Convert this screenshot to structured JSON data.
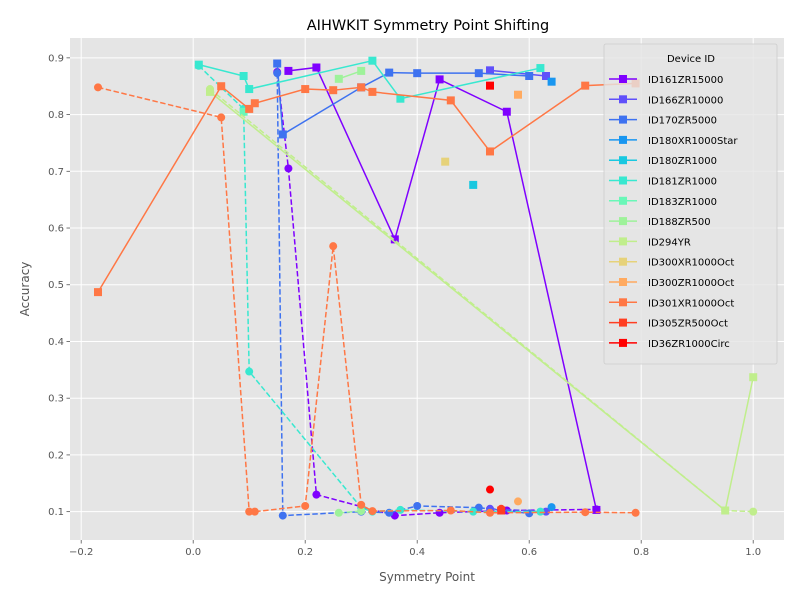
{
  "chart_data": {
    "type": "line",
    "title": "AIHWKIT Symmetry Point Shifting",
    "xlabel": "Symmetry Point",
    "ylabel": "Accuracy",
    "xlim": [
      -0.22,
      1.055
    ],
    "ylim": [
      0.05,
      0.935
    ],
    "xticks": [
      -0.2,
      0.0,
      0.2,
      0.4,
      0.6,
      0.8,
      1.0
    ],
    "xtick_labels": [
      "−0.2",
      "0.0",
      "0.2",
      "0.4",
      "0.6",
      "0.8",
      "1.0"
    ],
    "yticks": [
      0.1,
      0.2,
      0.3,
      0.4,
      0.5,
      0.6,
      0.7,
      0.8,
      0.9
    ],
    "ytick_labels": [
      "0.1",
      "0.2",
      "0.3",
      "0.4",
      "0.5",
      "0.6",
      "0.7",
      "0.8",
      "0.9"
    ],
    "grid": true,
    "legend": {
      "title": "Device ID",
      "placement": "top-right"
    },
    "series": [
      {
        "name": "ID161ZR15000",
        "color": "#7f00ff",
        "square": [
          [
            0.17,
            0.877
          ],
          [
            0.22,
            0.883
          ],
          [
            0.36,
            0.58
          ],
          [
            0.44,
            0.862
          ],
          [
            0.56,
            0.805
          ],
          [
            0.72,
            0.103
          ]
        ],
        "circle": [
          [
            0.15,
            0.875
          ],
          [
            0.17,
            0.705
          ],
          [
            0.22,
            0.13
          ],
          [
            0.36,
            0.093
          ],
          [
            0.44,
            0.098
          ],
          [
            0.56,
            0.102
          ],
          [
            0.72,
            0.104
          ]
        ]
      },
      {
        "name": "ID166ZR10000",
        "color": "#6050fa",
        "square": [
          [
            0.53,
            0.878
          ],
          [
            0.63,
            0.868
          ]
        ],
        "circle": [
          [
            0.53,
            0.105
          ],
          [
            0.63,
            0.1
          ]
        ]
      },
      {
        "name": "ID170ZR5000",
        "color": "#3e72f0",
        "square": [
          [
            0.15,
            0.89
          ],
          [
            0.16,
            0.765
          ],
          [
            0.3,
            0.848
          ],
          [
            0.35,
            0.874
          ],
          [
            0.4,
            0.873
          ],
          [
            0.51,
            0.873
          ],
          [
            0.6,
            0.868
          ]
        ],
        "circle": [
          [
            0.15,
            0.873
          ],
          [
            0.16,
            0.093
          ],
          [
            0.3,
            0.1
          ],
          [
            0.35,
            0.098
          ],
          [
            0.4,
            0.11
          ],
          [
            0.51,
            0.107
          ],
          [
            0.6,
            0.097
          ]
        ]
      },
      {
        "name": "ID180XR1000Star",
        "color": "#1996f0",
        "square": [
          [
            0.64,
            0.858
          ]
        ],
        "circle": [
          [
            0.64,
            0.108
          ]
        ]
      },
      {
        "name": "ID180ZR1000",
        "color": "#19c8e0",
        "square": [
          [
            0.5,
            0.676
          ]
        ],
        "circle": []
      },
      {
        "name": "ID181ZR1000",
        "color": "#38e8d0",
        "square": [
          [
            0.01,
            0.888
          ],
          [
            0.09,
            0.868
          ],
          [
            0.1,
            0.845
          ],
          [
            0.32,
            0.895
          ],
          [
            0.37,
            0.828
          ],
          [
            0.62,
            0.882
          ]
        ],
        "circle": [
          [
            0.01,
            0.886
          ],
          [
            0.09,
            0.81
          ],
          [
            0.1,
            0.347
          ],
          [
            0.3,
            0.107
          ],
          [
            0.32,
            0.1
          ],
          [
            0.37,
            0.103
          ],
          [
            0.5,
            0.1
          ],
          [
            0.62,
            0.1
          ]
        ]
      },
      {
        "name": "ID183ZR1000",
        "color": "#6af7b8",
        "square": [
          [
            0.09,
            0.805
          ]
        ],
        "circle": []
      },
      {
        "name": "ID188ZR500",
        "color": "#9ef29a",
        "square": [
          [
            0.26,
            0.863
          ],
          [
            0.3,
            0.877
          ]
        ],
        "circle": [
          [
            0.26,
            0.098
          ],
          [
            0.3,
            0.101
          ]
        ]
      },
      {
        "name": "ID294YR",
        "color": "#c0ee8c",
        "square": [
          [
            0.03,
            0.84
          ],
          [
            0.95,
            0.102
          ],
          [
            1.0,
            0.337
          ]
        ],
        "circle": [
          [
            0.03,
            0.845
          ],
          [
            0.95,
            0.102
          ],
          [
            1.0,
            0.1
          ]
        ]
      },
      {
        "name": "ID300XR1000Oct",
        "color": "#e6d27a",
        "square": [
          [
            0.45,
            0.717
          ]
        ],
        "circle": []
      },
      {
        "name": "ID300ZR1000Oct",
        "color": "#ffaa60",
        "square": [
          [
            0.58,
            0.835
          ]
        ],
        "circle": [
          [
            0.58,
            0.118
          ]
        ]
      },
      {
        "name": "ID301XR1000Oct",
        "color": "#ff7745",
        "square": [
          [
            -0.17,
            0.487
          ],
          [
            0.05,
            0.85
          ],
          [
            0.1,
            0.81
          ],
          [
            0.11,
            0.82
          ],
          [
            0.2,
            0.845
          ],
          [
            0.25,
            0.843
          ],
          [
            0.3,
            0.848
          ],
          [
            0.32,
            0.84
          ],
          [
            0.46,
            0.825
          ],
          [
            0.53,
            0.735
          ],
          [
            0.7,
            0.851
          ],
          [
            0.79,
            0.855
          ]
        ],
        "circle": [
          [
            -0.17,
            0.848
          ],
          [
            0.05,
            0.795
          ],
          [
            0.1,
            0.1
          ],
          [
            0.11,
            0.1
          ],
          [
            0.2,
            0.11
          ],
          [
            0.25,
            0.568
          ],
          [
            0.3,
            0.112
          ],
          [
            0.32,
            0.101
          ],
          [
            0.46,
            0.102
          ],
          [
            0.53,
            0.098
          ],
          [
            0.7,
            0.099
          ],
          [
            0.79,
            0.098
          ]
        ]
      },
      {
        "name": "ID305ZR500Oct",
        "color": "#ff3e22",
        "square": [
          [
            0.55,
            0.102
          ]
        ],
        "circle": [
          [
            0.55,
            0.105
          ]
        ]
      },
      {
        "name": "ID36ZR1000Circ",
        "color": "#ff0000",
        "square": [
          [
            0.53,
            0.851
          ]
        ],
        "circle": [
          [
            0.53,
            0.139
          ]
        ]
      }
    ]
  }
}
